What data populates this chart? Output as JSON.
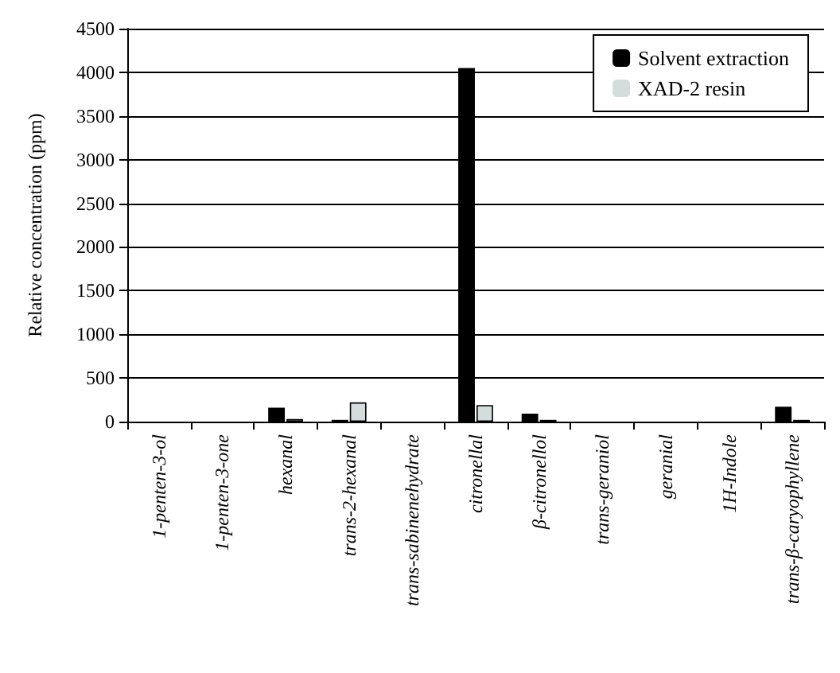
{
  "chart_data": {
    "type": "bar",
    "ylabel": "Relative concentration (ppm)",
    "categories": [
      "1-penten-3-ol",
      "1-penten-3-one",
      "hexanal",
      "trans-2-hexanal",
      "trans-sabinenehydrate",
      "citronellal",
      "β-citronellol",
      "trans-geraniol",
      "geranial",
      "1H-Indole",
      "trans-β-caryophyllene"
    ],
    "series": [
      {
        "name": "Solvent extraction",
        "color": "#000000",
        "values": [
          0,
          0,
          160,
          20,
          0,
          4050,
          90,
          0,
          0,
          0,
          170
        ]
      },
      {
        "name": "XAD-2 resin",
        "color": "#d4dcdc",
        "values": [
          0,
          0,
          30,
          220,
          0,
          190,
          20,
          0,
          0,
          0,
          20
        ]
      }
    ],
    "ylim": [
      0,
      4500
    ],
    "yticks": [
      0,
      500,
      1000,
      1500,
      2000,
      2500,
      3000,
      3500,
      4000,
      4500
    ],
    "grid": "y",
    "legend": "top right"
  }
}
